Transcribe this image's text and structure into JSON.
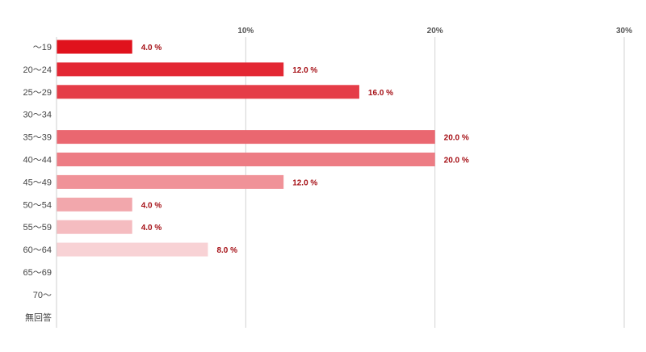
{
  "chart_data": {
    "type": "bar",
    "orientation": "horizontal",
    "categories": [
      "～19",
      "20～24",
      "25～29",
      "30～34",
      "35～39",
      "40～44",
      "45～49",
      "50～54",
      "55～59",
      "60～64",
      "65～69",
      "70～",
      "無回答"
    ],
    "values": [
      4.0,
      12.0,
      16.0,
      0,
      20.0,
      20.0,
      12.0,
      4.0,
      4.0,
      8.0,
      0,
      0,
      0
    ],
    "data_labels": [
      "4.0 %",
      "12.0 %",
      "16.0 %",
      "",
      "20.0 %",
      "20.0 %",
      "12.0 %",
      "4.0 %",
      "4.0 %",
      "8.0 %",
      "",
      "",
      ""
    ],
    "bar_colors": [
      "#e0121d",
      "#e32733",
      "#e53c47",
      "#e8515b",
      "#ea6770",
      "#ed7c84",
      "#f09298",
      "#f2a7ac",
      "#f5bcc0",
      "#f8d2d5",
      "#fae7e9",
      "#fdf4f4",
      "#ffffff"
    ],
    "xlim": [
      0,
      30
    ],
    "xticks": [
      10,
      20,
      30
    ],
    "xtick_labels": [
      "10%",
      "20%",
      "30%"
    ],
    "grid": true,
    "title": "",
    "xlabel": "",
    "ylabel": ""
  }
}
